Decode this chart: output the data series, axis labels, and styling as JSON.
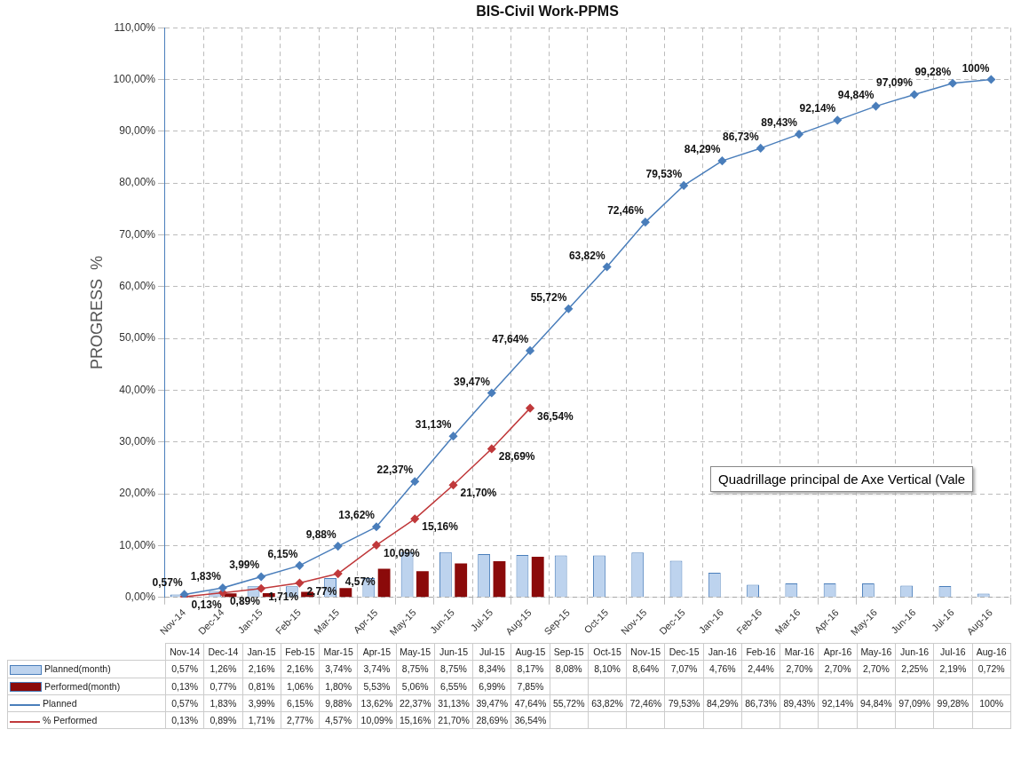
{
  "chart_data": {
    "type": "bar",
    "title": "BIS-Civil Work-PPMS",
    "ylabel": "PROGRESS  %",
    "categories": [
      "Nov-14",
      "Dec-14",
      "Jan-15",
      "Feb-15",
      "Mar-15",
      "Apr-15",
      "May-15",
      "Jun-15",
      "Jul-15",
      "Aug-15",
      "Sep-15",
      "Oct-15",
      "Nov-15",
      "Dec-15",
      "Jan-16",
      "Feb-16",
      "Mar-16",
      "Apr-16",
      "May-16",
      "Jun-16",
      "Jul-16",
      "Aug-16"
    ],
    "series": [
      {
        "name": "Planned(month)",
        "color": "#bdd3ee",
        "values": [
          0.57,
          1.26,
          2.16,
          2.16,
          3.74,
          3.74,
          8.75,
          8.75,
          8.34,
          8.17,
          8.08,
          8.1,
          8.64,
          7.07,
          4.76,
          2.44,
          2.7,
          2.7,
          2.7,
          2.25,
          2.19,
          0.72
        ],
        "value_labels": [
          "0,57%",
          "1,26%",
          "2,16%",
          "2,16%",
          "3,74%",
          "3,74%",
          "8,75%",
          "8,75%",
          "8,34%",
          "8,17%",
          "8,08%",
          "8,10%",
          "8,64%",
          "7,07%",
          "4,76%",
          "2,44%",
          "2,70%",
          "2,70%",
          "2,70%",
          "2,25%",
          "2,19%",
          "0,72%"
        ]
      },
      {
        "name": "Performed(month)",
        "color": "#8b0a0a",
        "values": [
          0.13,
          0.77,
          0.81,
          1.06,
          1.8,
          5.53,
          5.06,
          6.55,
          6.99,
          7.85,
          null,
          null,
          null,
          null,
          null,
          null,
          null,
          null,
          null,
          null,
          null,
          null
        ],
        "value_labels": [
          "0,13%",
          "0,77%",
          "0,81%",
          "1,06%",
          "1,80%",
          "5,53%",
          "5,06%",
          "6,55%",
          "6,99%",
          "7,85%",
          null,
          null,
          null,
          null,
          null,
          null,
          null,
          null,
          null,
          null,
          null,
          null
        ]
      },
      {
        "name": "Planned",
        "type": "line",
        "color": "#4a7ebb",
        "values": [
          0.57,
          1.83,
          3.99,
          6.15,
          9.88,
          13.62,
          22.37,
          31.13,
          39.47,
          47.64,
          55.72,
          63.82,
          72.46,
          79.53,
          84.29,
          86.73,
          89.43,
          92.14,
          94.84,
          97.09,
          99.28,
          100
        ],
        "value_labels": [
          "0,57%",
          "1,83%",
          "3,99%",
          "6,15%",
          "9,88%",
          "13,62%",
          "22,37%",
          "31,13%",
          "39,47%",
          "47,64%",
          "55,72%",
          "63,82%",
          "72,46%",
          "79,53%",
          "84,29%",
          "86,73%",
          "89,43%",
          "92,14%",
          "94,84%",
          "97,09%",
          "99,28%",
          "100%"
        ]
      },
      {
        "name": "% Performed",
        "type": "line",
        "color": "#c0393b",
        "values": [
          0.13,
          0.89,
          1.71,
          2.77,
          4.57,
          10.09,
          15.16,
          21.7,
          28.69,
          36.54,
          null,
          null,
          null,
          null,
          null,
          null,
          null,
          null,
          null,
          null,
          null,
          null
        ],
        "value_labels": [
          "0,13%",
          "0,89%",
          "1,71%",
          "2,77%",
          "4,57%",
          "10,09%",
          "15,16%",
          "21,70%",
          "28,69%",
          "36,54%",
          null,
          null,
          null,
          null,
          null,
          null,
          null,
          null,
          null,
          null,
          null,
          null
        ]
      }
    ],
    "ylim": [
      0,
      110
    ],
    "yticks": [
      {
        "value": 0,
        "label": "0,00%"
      },
      {
        "value": 10,
        "label": "10,00%"
      },
      {
        "value": 20,
        "label": "20,00%"
      },
      {
        "value": 30,
        "label": "30,00%"
      },
      {
        "value": 40,
        "label": "40,00%"
      },
      {
        "value": 50,
        "label": "50,00%"
      },
      {
        "value": 60,
        "label": "60,00%"
      },
      {
        "value": 70,
        "label": "70,00%"
      },
      {
        "value": 80,
        "label": "80,00%"
      },
      {
        "value": 90,
        "label": "90,00%"
      },
      {
        "value": 100,
        "label": "100,00%"
      },
      {
        "value": 110,
        "label": "110,00%"
      }
    ],
    "grid": true,
    "legend": "bottom",
    "marker": "diamond",
    "line_style": "solid",
    "annotations": [
      "Quadrillage principal de Axe Vertical (Vale"
    ]
  }
}
